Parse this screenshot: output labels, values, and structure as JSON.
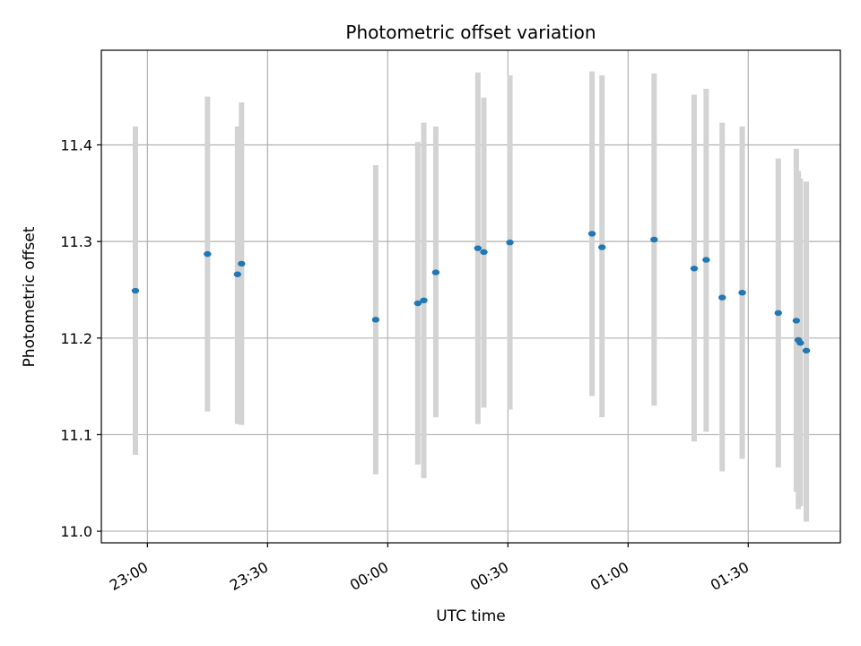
{
  "chart_data": {
    "type": "scatter",
    "title": "Photometric offset variation",
    "xlabel": "UTC time",
    "ylabel": "Photometric offset",
    "x_tick_labels": [
      "23:00",
      "23:30",
      "00:00",
      "00:30",
      "01:00",
      "01:30"
    ],
    "x_tick_minutes": [
      0,
      30,
      60,
      90,
      120,
      150
    ],
    "xlim_minutes": [
      -11.5,
      173
    ],
    "y_ticks": [
      11.0,
      11.1,
      11.2,
      11.3,
      11.4
    ],
    "y_tick_labels": [
      "11.0",
      "11.1",
      "11.2",
      "11.3",
      "11.4"
    ],
    "ylim": [
      10.988,
      11.498
    ],
    "grid": true,
    "colors": {
      "point": "#1f77b4",
      "errorbar": "#d3d3d3",
      "grid": "#b0b0b0"
    },
    "x_minutes_after_2300": [
      -3.0,
      15.0,
      22.5,
      23.5,
      57.0,
      67.5,
      69.0,
      72.0,
      82.5,
      84.0,
      90.5,
      111.0,
      113.5,
      126.5,
      136.5,
      139.5,
      143.5,
      148.5,
      157.5,
      162.0,
      162.5,
      163.0,
      164.5
    ],
    "values": [
      11.249,
      11.287,
      11.266,
      11.277,
      11.219,
      11.236,
      11.239,
      11.268,
      11.293,
      11.289,
      11.299,
      11.308,
      11.294,
      11.302,
      11.272,
      11.281,
      11.242,
      11.247,
      11.226,
      11.218,
      11.198,
      11.195,
      11.187
    ],
    "err_low": [
      11.079,
      11.124,
      11.111,
      11.11,
      11.059,
      11.069,
      11.055,
      11.118,
      11.111,
      11.128,
      11.126,
      11.14,
      11.118,
      11.13,
      11.093,
      11.103,
      11.062,
      11.075,
      11.066,
      11.041,
      11.023,
      11.026,
      11.01
    ],
    "err_high": [
      11.419,
      11.45,
      11.419,
      11.444,
      11.379,
      11.403,
      11.423,
      11.419,
      11.475,
      11.449,
      11.472,
      11.476,
      11.472,
      11.474,
      11.452,
      11.458,
      11.423,
      11.419,
      11.386,
      11.396,
      11.373,
      11.365,
      11.362
    ]
  }
}
